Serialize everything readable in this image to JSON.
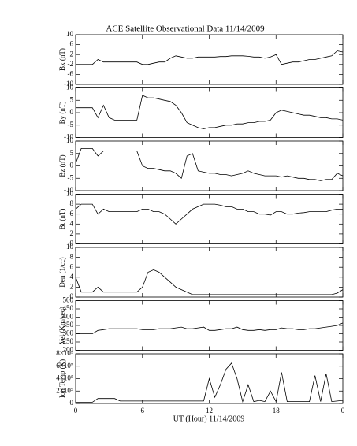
{
  "title": "ACE Satellite Observational Data   11/14/2009",
  "xlabel": "UT (Hour)   11/14/2009",
  "chart_data": [
    {
      "type": "line",
      "ylabel": "Bx (nT)",
      "color": "#000000",
      "x": [
        0,
        0.5,
        1,
        1.5,
        2,
        2.5,
        3,
        3.5,
        4,
        4.5,
        5,
        5.5,
        6,
        6.5,
        7,
        7.5,
        8,
        8.5,
        9,
        9.5,
        10,
        10.5,
        11,
        11.5,
        12,
        12.5,
        13,
        13.5,
        14,
        14.5,
        15,
        15.5,
        16,
        16.5,
        17,
        17.5,
        18,
        18.5,
        19,
        19.5,
        20,
        20.5,
        21,
        21.5,
        22,
        22.5,
        23,
        23.5,
        24
      ],
      "values": [
        -2,
        -2,
        -2,
        -2,
        0,
        -1,
        -1,
        -1,
        -1,
        -1,
        -1,
        -1,
        -2,
        -2,
        -1.5,
        -1,
        -1,
        0.5,
        1.5,
        1,
        0.5,
        0.5,
        1,
        1,
        1,
        1,
        1.2,
        1.2,
        1.5,
        1.5,
        1.5,
        1.3,
        1,
        1,
        0.5,
        1,
        2,
        -2,
        -1.5,
        -1,
        -1,
        -0.5,
        0,
        0,
        0.5,
        1,
        1.5,
        3.5,
        3
      ],
      "xlim": [
        0,
        24
      ],
      "xticks": [
        0,
        6,
        12,
        18,
        {
          "value": 24,
          "label": "0"
        }
      ],
      "ylim": [
        -10,
        10
      ],
      "yticks": [
        -10,
        -6,
        -2,
        2,
        6,
        10
      ]
    },
    {
      "type": "line",
      "ylabel": "By (nT)",
      "color": "#000000",
      "x": [
        0,
        0.5,
        1,
        1.5,
        2,
        2.5,
        3,
        3.5,
        4,
        4.5,
        5,
        5.5,
        6,
        6.5,
        7,
        7.5,
        8,
        8.5,
        9,
        9.5,
        10,
        10.5,
        11,
        11.5,
        12,
        12.5,
        13,
        13.5,
        14,
        14.5,
        15,
        15.5,
        16,
        16.5,
        17,
        17.5,
        18,
        18.5,
        19,
        19.5,
        20,
        20.5,
        21,
        21.5,
        22,
        22.5,
        23,
        23.5,
        24
      ],
      "values": [
        2,
        2,
        2,
        2,
        -2,
        3,
        -2,
        -3,
        -3,
        -3,
        -3,
        -3,
        7,
        6,
        6,
        5.5,
        5,
        4.5,
        3,
        0,
        -4,
        -5,
        -6,
        -6.5,
        -6,
        -6,
        -5.5,
        -5,
        -5,
        -4.5,
        -4.5,
        -4,
        -4,
        -3.5,
        -3.5,
        -3,
        0,
        1,
        0.5,
        0,
        -0.5,
        -1,
        -1,
        -1.5,
        -2,
        -2,
        -2.5,
        -2.5,
        -3
      ],
      "xlim": [
        0,
        24
      ],
      "xticks": [
        0,
        6,
        12,
        18,
        {
          "value": 24,
          "label": "0"
        }
      ],
      "ylim": [
        -10,
        10
      ],
      "yticks": [
        -10,
        -5,
        0,
        5,
        10
      ]
    },
    {
      "type": "line",
      "ylabel": "Bz (nT)",
      "color": "#000000",
      "x": [
        0,
        0.5,
        1,
        1.5,
        2,
        2.5,
        3,
        3.5,
        4,
        4.5,
        5,
        5.5,
        6,
        6.5,
        7,
        7.5,
        8,
        8.5,
        9,
        9.5,
        10,
        10.5,
        11,
        11.5,
        12,
        12.5,
        13,
        13.5,
        14,
        14.5,
        15,
        15.5,
        16,
        16.5,
        17,
        17.5,
        18,
        18.5,
        19,
        19.5,
        20,
        20.5,
        21,
        21.5,
        22,
        22.5,
        23,
        23.5,
        24
      ],
      "values": [
        1,
        7,
        7,
        7,
        4,
        6,
        6,
        6,
        6,
        6,
        6,
        6,
        0,
        -1,
        -1,
        -1.5,
        -2,
        -2,
        -3,
        -5,
        4,
        5,
        -2,
        -2.5,
        -3,
        -3,
        -3.5,
        -3.5,
        -4,
        -3.5,
        -3,
        -2,
        -3,
        -3.5,
        -4,
        -4,
        -4,
        -4.5,
        -4,
        -4.5,
        -5,
        -5,
        -5.5,
        -5.5,
        -6,
        -5.5,
        -5.5,
        -3,
        -4
      ],
      "xlim": [
        0,
        24
      ],
      "xticks": [
        0,
        6,
        12,
        18,
        {
          "value": 24,
          "label": "0"
        }
      ],
      "ylim": [
        -10,
        10
      ],
      "yticks": [
        -10,
        -5,
        0,
        5,
        10
      ]
    },
    {
      "type": "line",
      "ylabel": "Bt (nT)",
      "color": "#000000",
      "x": [
        0,
        0.5,
        1,
        1.5,
        2,
        2.5,
        3,
        3.5,
        4,
        4.5,
        5,
        5.5,
        6,
        6.5,
        7,
        7.5,
        8,
        8.5,
        9,
        9.5,
        10,
        10.5,
        11,
        11.5,
        12,
        12.5,
        13,
        13.5,
        14,
        14.5,
        15,
        15.5,
        16,
        16.5,
        17,
        17.5,
        18,
        18.5,
        19,
        19.5,
        20,
        20.5,
        21,
        21.5,
        22,
        22.5,
        23,
        23.5,
        24
      ],
      "values": [
        7,
        8,
        8,
        8,
        6,
        7,
        6.5,
        6.5,
        6.5,
        6.5,
        6.5,
        6.5,
        7,
        7,
        6.5,
        6.5,
        6,
        5,
        4,
        5,
        6,
        7,
        7.5,
        8,
        8,
        8,
        7.8,
        7.5,
        7.5,
        7,
        7,
        6.5,
        6.5,
        6,
        6,
        5.8,
        6.5,
        6.5,
        6,
        6,
        6.2,
        6.3,
        6.5,
        6.5,
        6.5,
        6.5,
        6.8,
        7,
        7
      ],
      "xlim": [
        0,
        24
      ],
      "xticks": [
        0,
        6,
        12,
        18,
        {
          "value": 24,
          "label": "0"
        }
      ],
      "ylim": [
        0,
        10
      ],
      "yticks": [
        0,
        2,
        4,
        6,
        8,
        10
      ]
    },
    {
      "type": "line",
      "ylabel": "Den (1/cc)",
      "color": "#000000",
      "x": [
        0,
        0.5,
        1,
        1.5,
        2,
        2.5,
        3,
        3.5,
        4,
        4.5,
        5,
        5.5,
        6,
        6.5,
        7,
        7.5,
        8,
        8.5,
        9,
        9.5,
        10,
        10.5,
        11,
        11.5,
        12,
        12.5,
        13,
        13.5,
        14,
        14.5,
        15,
        15.5,
        16,
        16.5,
        17,
        17.5,
        18,
        18.5,
        19,
        19.5,
        20,
        20.5,
        21,
        21.5,
        22,
        22.5,
        23,
        23.5,
        24
      ],
      "values": [
        4,
        1,
        1,
        1,
        2,
        1,
        1,
        1,
        1,
        1,
        1,
        1,
        2,
        5,
        5.5,
        5,
        4,
        3,
        2,
        1.5,
        1,
        0.5,
        0.5,
        0.5,
        0.5,
        0.5,
        0.5,
        0.5,
        0.5,
        0.5,
        0.5,
        0.5,
        0.5,
        0.5,
        0.5,
        0.5,
        0.5,
        0.5,
        0.5,
        0.5,
        0.5,
        0.5,
        0.5,
        0.5,
        0.5,
        0.5,
        0.5,
        0.8,
        1.5
      ],
      "xlim": [
        0,
        24
      ],
      "xticks": [
        0,
        6,
        12,
        18,
        {
          "value": 24,
          "label": "0"
        }
      ],
      "ylim": [
        0,
        10
      ],
      "yticks": [
        0,
        2,
        4,
        6,
        8,
        10
      ]
    },
    {
      "type": "line",
      "ylabel": "Vel (Km/sec)",
      "color": "#000000",
      "x": [
        0,
        0.5,
        1,
        1.5,
        2,
        2.5,
        3,
        3.5,
        4,
        4.5,
        5,
        5.5,
        6,
        6.5,
        7,
        7.5,
        8,
        8.5,
        9,
        9.5,
        10,
        10.5,
        11,
        11.5,
        12,
        12.5,
        13,
        13.5,
        14,
        14.5,
        15,
        15.5,
        16,
        16.5,
        17,
        17.5,
        18,
        18.5,
        19,
        19.5,
        20,
        20.5,
        21,
        21.5,
        22,
        22.5,
        23,
        23.5,
        24
      ],
      "values": [
        300,
        300,
        300,
        300,
        320,
        325,
        330,
        330,
        330,
        330,
        330,
        330,
        325,
        325,
        325,
        330,
        330,
        330,
        335,
        340,
        330,
        330,
        335,
        340,
        320,
        320,
        325,
        330,
        330,
        340,
        325,
        320,
        320,
        325,
        320,
        325,
        325,
        335,
        330,
        330,
        325,
        325,
        330,
        330,
        335,
        340,
        345,
        350,
        365
      ],
      "xlim": [
        0,
        24
      ],
      "xticks": [
        0,
        6,
        12,
        18,
        {
          "value": 24,
          "label": "0"
        }
      ],
      "ylim": [
        200,
        500
      ],
      "yticks": [
        200,
        250,
        300,
        350,
        400,
        450,
        500
      ]
    },
    {
      "type": "line",
      "ylabel": "Ion Temp (K)",
      "color": "#000000",
      "x": [
        0,
        0.5,
        1,
        1.5,
        2,
        2.5,
        3,
        3.5,
        4,
        4.5,
        5,
        5.5,
        6,
        6.5,
        7,
        7.5,
        8,
        8.5,
        9,
        9.5,
        10,
        10.5,
        11,
        11.5,
        12,
        12.5,
        13,
        13.5,
        14,
        14.5,
        15,
        15.5,
        16,
        16.5,
        17,
        17.5,
        18,
        18.5,
        19,
        19.5,
        20,
        20.5,
        21,
        21.5,
        22,
        22.5,
        23,
        23.5,
        24
      ],
      "values": [
        20000,
        20000,
        20000,
        20000,
        80000,
        80000,
        80000,
        80000,
        40000,
        40000,
        40000,
        40000,
        40000,
        40000,
        40000,
        40000,
        40000,
        40000,
        40000,
        40000,
        40000,
        40000,
        40000,
        40000,
        400000,
        100000,
        300000,
        550000,
        650000,
        400000,
        30000,
        300000,
        30000,
        50000,
        30000,
        200000,
        30000,
        500000,
        30000,
        30000,
        30000,
        30000,
        30000,
        450000,
        30000,
        480000,
        30000,
        40000,
        50000
      ],
      "xlim": [
        0,
        24
      ],
      "xticks": [
        0,
        6,
        12,
        18,
        {
          "value": 24,
          "label": "0"
        }
      ],
      "ylim": [
        0,
        800000
      ],
      "yticks": [
        0,
        {
          "value": 200000,
          "label": "2×10⁵"
        },
        {
          "value": 400000,
          "label": "4×10⁵"
        },
        {
          "value": 600000,
          "label": "6×10⁵"
        },
        {
          "value": 800000,
          "label": "8×10⁵"
        }
      ]
    }
  ]
}
